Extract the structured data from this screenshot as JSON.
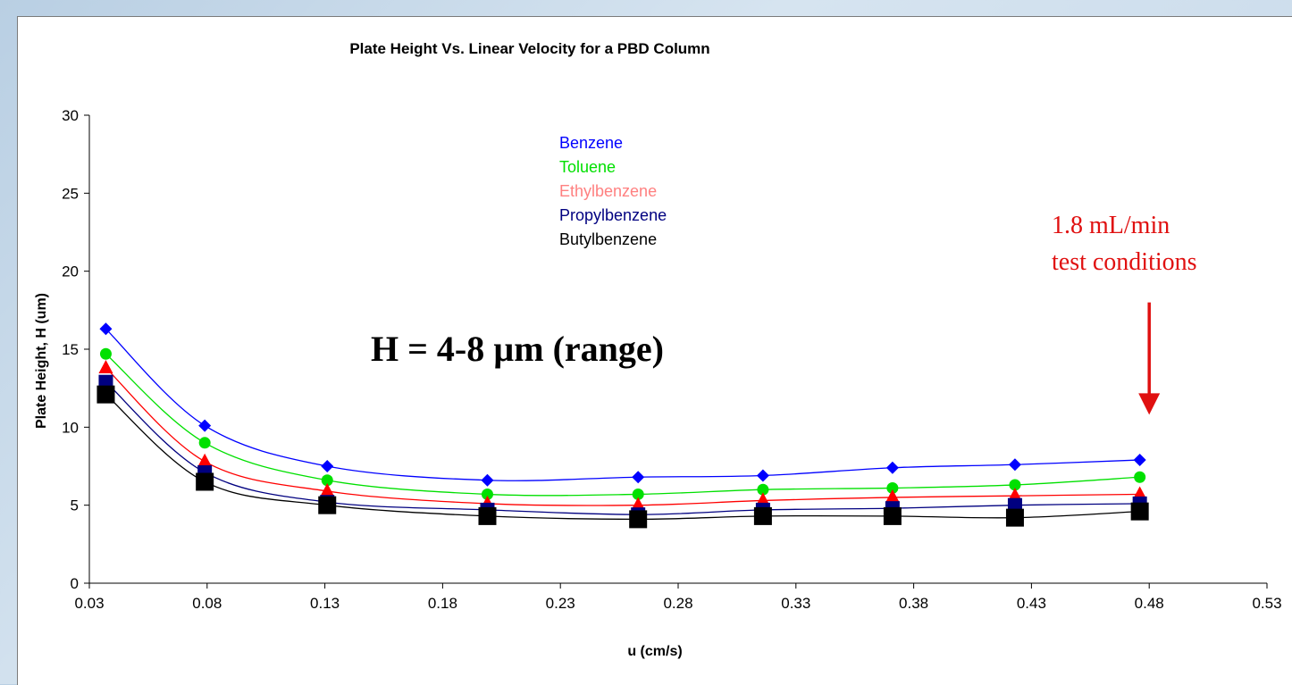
{
  "chart_data": {
    "type": "line",
    "title": "Plate Height Vs. Linear Velocity for a PBD Column",
    "xlabel": "u (cm/s)",
    "ylabel": "Plate Height, H (um)",
    "xlim": [
      0.03,
      0.53
    ],
    "ylim": [
      0,
      30
    ],
    "x_ticks": [
      "0.03",
      "0.08",
      "0.13",
      "0.18",
      "0.23",
      "0.28",
      "0.33",
      "0.38",
      "0.43",
      "0.48",
      "0.53"
    ],
    "y_ticks": [
      "0",
      "5",
      "10",
      "15",
      "20",
      "25",
      "30"
    ],
    "grid": false,
    "legend_position": "top-center",
    "x": [
      0.037,
      0.079,
      0.131,
      0.199,
      0.263,
      0.316,
      0.371,
      0.423,
      0.476
    ],
    "series": [
      {
        "name": "Benzene",
        "color": "#0000ff",
        "marker": "diamond",
        "values": [
          16.3,
          10.1,
          7.5,
          6.6,
          6.8,
          6.9,
          7.4,
          7.6,
          7.9
        ]
      },
      {
        "name": "Toluene",
        "color": "#00e000",
        "marker": "circle",
        "values": [
          14.7,
          9.0,
          6.6,
          5.7,
          5.7,
          6.0,
          6.1,
          6.3,
          6.8
        ]
      },
      {
        "name": "Ethylbenzene",
        "color": "#ff0000",
        "legend_color": "#ff8080",
        "marker": "triangle",
        "values": [
          13.8,
          7.8,
          5.9,
          5.1,
          5.0,
          5.3,
          5.5,
          5.6,
          5.7
        ]
      },
      {
        "name": "Propylbenzene",
        "color": "#000080",
        "marker": "square",
        "values": [
          12.9,
          7.1,
          5.2,
          4.7,
          4.4,
          4.7,
          4.8,
          5.0,
          5.1
        ]
      },
      {
        "name": "Butylbenzene",
        "color": "#000000",
        "marker": "square",
        "values": [
          12.1,
          6.5,
          5.0,
          4.3,
          4.1,
          4.3,
          4.3,
          4.2,
          4.6
        ]
      }
    ],
    "annotations": [
      {
        "text": "H = 4-8 µm (range)"
      },
      {
        "text": "1.8 mL/min"
      },
      {
        "text": "test conditions"
      }
    ],
    "arrow": {
      "x": 0.48,
      "y_from": 18.0,
      "y_to": 10.8,
      "color": "#e01010"
    }
  }
}
